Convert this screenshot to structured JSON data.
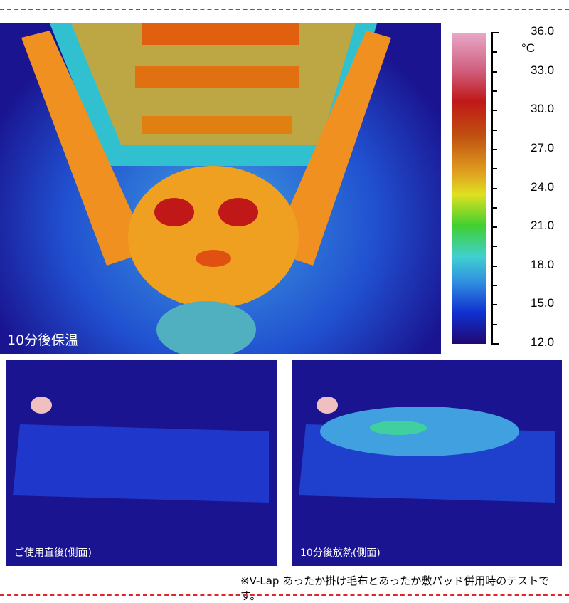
{
  "top_image": {
    "caption": "10分後保温"
  },
  "bottom_left": {
    "caption": "ご使用直後(側面)"
  },
  "bottom_right": {
    "caption": "10分後放熱(側面)"
  },
  "scale": {
    "unit": "°C",
    "labels": [
      "36.0",
      "33.0",
      "30.0",
      "27.0",
      "24.0",
      "21.0",
      "18.0",
      "15.0",
      "12.0"
    ],
    "min": 12.0,
    "max": 36.0
  },
  "footnote": "※V-Lap あったか掛け毛布とあったか敷パッド併用時のテストです。",
  "colors": {
    "divider": "#e0262b",
    "background_cold": "#1a1490"
  }
}
